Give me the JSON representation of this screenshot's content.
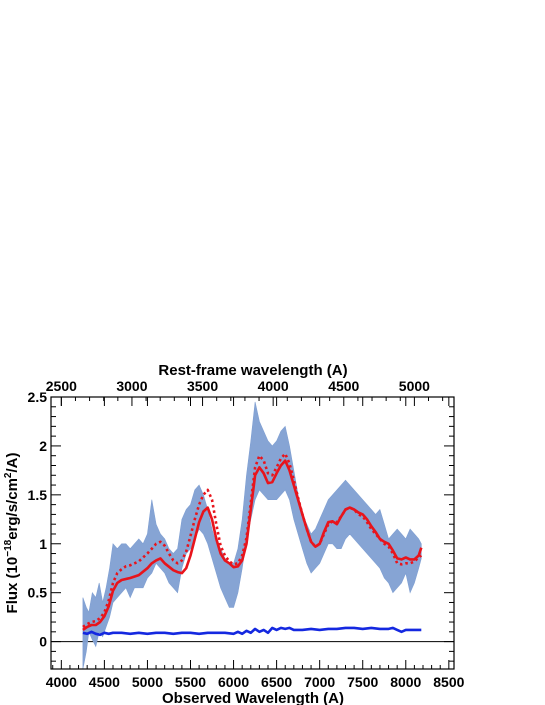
{
  "chart_data": {
    "type": "line",
    "title": "",
    "xlabel": "Observed Wavelength (A)",
    "x2label": "Rest-frame wavelength (A)",
    "ylabel_parts": {
      "prefix": "Flux (10",
      "exp1": "−18",
      "middle": "erg/s/cm",
      "exp2": "2",
      "suffix": "/A)"
    },
    "xlim": [
      3880,
      8560
    ],
    "ylim": [
      -0.28,
      2.5
    ],
    "x2_offset_rest_wavelength": 2500,
    "x2_offset_observed": 4000,
    "x2_slope": 1.64,
    "xticks": [
      4000,
      4500,
      5000,
      5500,
      6000,
      6500,
      7000,
      7500,
      8000,
      8500
    ],
    "xtick_labels": [
      "4000",
      "4500",
      "5000",
      "5500",
      "6000",
      "6500",
      "7000",
      "7500",
      "8000",
      "8500"
    ],
    "x2ticks": [
      2500,
      3000,
      3500,
      4000,
      4500,
      5000
    ],
    "x2tick_labels": [
      "2500",
      "3000",
      "3500",
      "4000",
      "4500",
      "5000"
    ],
    "yticks": [
      0,
      0.5,
      1,
      1.5,
      2,
      2.5
    ],
    "ytick_labels": [
      "0",
      "0.5",
      "1",
      "1.5",
      "2",
      "2.5"
    ],
    "zero_line": true,
    "grid": false,
    "series": [
      {
        "style": "band",
        "color": "#7f9fd2",
        "x": [
          4250,
          4290,
          4320,
          4360,
          4400,
          4440,
          4480,
          4520,
          4560,
          4600,
          4650,
          4700,
          4750,
          4800,
          4850,
          4900,
          4950,
          5000,
          5050,
          5100,
          5150,
          5200,
          5250,
          5300,
          5350,
          5400,
          5450,
          5500,
          5550,
          5600,
          5650,
          5700,
          5750,
          5800,
          5850,
          5900,
          5950,
          6000,
          6050,
          6100,
          6150,
          6200,
          6250,
          6300,
          6350,
          6400,
          6450,
          6500,
          6550,
          6600,
          6650,
          6700,
          6750,
          6800,
          6850,
          6900,
          6950,
          7000,
          7050,
          7100,
          7150,
          7200,
          7250,
          7300,
          7350,
          7400,
          7450,
          7500,
          7550,
          7600,
          7650,
          7700,
          7750,
          7800,
          7850,
          7900,
          7950,
          8000,
          8050,
          8100,
          8150,
          8180
        ],
        "low": [
          -0.28,
          -0.1,
          0.1,
          0.02,
          -0.05,
          0.1,
          0.05,
          0.15,
          0.25,
          0.4,
          0.45,
          0.5,
          0.55,
          0.45,
          0.55,
          0.55,
          0.55,
          0.65,
          0.7,
          0.8,
          0.75,
          0.7,
          0.6,
          0.55,
          0.5,
          0.75,
          0.9,
          0.95,
          1.05,
          1.15,
          1.1,
          1.0,
          0.85,
          0.7,
          0.55,
          0.45,
          0.35,
          0.35,
          0.5,
          0.75,
          1.05,
          1.25,
          1.45,
          1.55,
          1.5,
          1.45,
          1.45,
          1.45,
          1.5,
          1.55,
          1.45,
          1.25,
          1.1,
          0.95,
          0.8,
          0.7,
          0.75,
          0.8,
          0.9,
          1.0,
          1.0,
          0.95,
          0.95,
          1.05,
          1.1,
          1.05,
          1.0,
          0.95,
          0.9,
          0.85,
          0.8,
          0.75,
          0.65,
          0.6,
          0.5,
          0.55,
          0.6,
          0.7,
          0.5,
          0.6,
          0.75,
          0.85
        ],
        "high": [
          0.45,
          0.35,
          0.3,
          0.5,
          0.45,
          0.6,
          0.4,
          0.55,
          0.75,
          1.0,
          0.95,
          1.0,
          1.0,
          0.95,
          1.0,
          1.05,
          1.0,
          1.1,
          1.45,
          1.2,
          1.1,
          1.05,
          0.95,
          0.9,
          0.95,
          1.25,
          1.35,
          1.4,
          1.55,
          1.6,
          1.5,
          1.35,
          1.15,
          1.0,
          0.95,
          0.85,
          0.8,
          0.8,
          0.95,
          1.25,
          1.7,
          2.05,
          2.45,
          2.25,
          2.15,
          2.05,
          2.0,
          2.05,
          2.15,
          2.2,
          2.0,
          1.75,
          1.5,
          1.3,
          1.2,
          1.1,
          1.15,
          1.25,
          1.35,
          1.45,
          1.5,
          1.55,
          1.6,
          1.65,
          1.6,
          1.55,
          1.5,
          1.45,
          1.4,
          1.35,
          1.3,
          1.35,
          1.2,
          1.05,
          1.1,
          1.15,
          1.1,
          1.05,
          1.15,
          1.1,
          1.05,
          1.0
        ]
      },
      {
        "style": "solid",
        "color": "#e8141c",
        "x": [
          4250,
          4300,
          4350,
          4400,
          4450,
          4500,
          4550,
          4600,
          4650,
          4700,
          4800,
          4900,
          5000,
          5050,
          5100,
          5150,
          5200,
          5300,
          5350,
          5400,
          5450,
          5500,
          5550,
          5600,
          5650,
          5700,
          5750,
          5800,
          5850,
          5900,
          5950,
          6000,
          6050,
          6100,
          6150,
          6200,
          6250,
          6300,
          6350,
          6400,
          6450,
          6500,
          6550,
          6600,
          6650,
          6700,
          6750,
          6800,
          6850,
          6900,
          6950,
          7000,
          7050,
          7100,
          7150,
          7200,
          7250,
          7300,
          7350,
          7400,
          7450,
          7500,
          7550,
          7600,
          7650,
          7700,
          7750,
          7800,
          7850,
          7900,
          7950,
          8000,
          8050,
          8100,
          8150,
          8180
        ],
        "y": [
          0.12,
          0.15,
          0.17,
          0.17,
          0.2,
          0.26,
          0.36,
          0.52,
          0.6,
          0.63,
          0.65,
          0.68,
          0.75,
          0.8,
          0.83,
          0.85,
          0.8,
          0.73,
          0.71,
          0.7,
          0.75,
          0.88,
          1.05,
          1.22,
          1.33,
          1.37,
          1.25,
          1.05,
          0.9,
          0.83,
          0.8,
          0.76,
          0.77,
          0.83,
          1.0,
          1.35,
          1.7,
          1.78,
          1.72,
          1.62,
          1.63,
          1.72,
          1.8,
          1.85,
          1.75,
          1.6,
          1.45,
          1.3,
          1.15,
          1.02,
          0.97,
          1.0,
          1.12,
          1.22,
          1.23,
          1.2,
          1.28,
          1.35,
          1.37,
          1.35,
          1.32,
          1.3,
          1.25,
          1.18,
          1.12,
          1.05,
          1.02,
          1.0,
          0.93,
          0.85,
          0.84,
          0.86,
          0.84,
          0.84,
          0.88,
          0.96
        ]
      },
      {
        "style": "dotted",
        "color": "#e8141c",
        "x": [
          4250,
          4300,
          4350,
          4400,
          4450,
          4500,
          4550,
          4600,
          4650,
          4700,
          4750,
          4800,
          4900,
          5000,
          5050,
          5100,
          5150,
          5200,
          5250,
          5300,
          5350,
          5400,
          5450,
          5500,
          5550,
          5600,
          5650,
          5700,
          5750,
          5800,
          5850,
          5900,
          5950,
          6000,
          6050,
          6100,
          6150,
          6200,
          6250,
          6300,
          6350,
          6400,
          6450,
          6500,
          6550,
          6600,
          6650,
          6700,
          6750,
          6800,
          6850,
          6900,
          6950,
          7000,
          7050,
          7100,
          7150,
          7200,
          7250,
          7300,
          7350,
          7400,
          7450,
          7500,
          7550,
          7600,
          7650,
          7700,
          7750,
          7800,
          7850,
          7900,
          7950,
          8000,
          8050,
          8100,
          8150,
          8180
        ],
        "y": [
          0.15,
          0.18,
          0.2,
          0.21,
          0.24,
          0.3,
          0.42,
          0.6,
          0.7,
          0.74,
          0.77,
          0.78,
          0.82,
          0.9,
          0.95,
          1.0,
          1.02,
          0.98,
          0.9,
          0.83,
          0.8,
          0.83,
          0.92,
          1.08,
          1.25,
          1.4,
          1.5,
          1.55,
          1.45,
          1.2,
          0.98,
          0.88,
          0.82,
          0.79,
          0.8,
          0.88,
          1.06,
          1.42,
          1.78,
          1.9,
          1.85,
          1.72,
          1.7,
          1.78,
          1.87,
          1.92,
          1.82,
          1.65,
          1.47,
          1.3,
          1.15,
          1.02,
          0.97,
          1.0,
          1.1,
          1.2,
          1.23,
          1.22,
          1.28,
          1.35,
          1.37,
          1.35,
          1.3,
          1.28,
          1.22,
          1.15,
          1.1,
          1.05,
          1.0,
          0.97,
          0.9,
          0.8,
          0.79,
          0.8,
          0.8,
          0.82,
          0.86,
          0.88
        ]
      },
      {
        "style": "solid",
        "color": "#1428e0",
        "x": [
          4250,
          4300,
          4350,
          4400,
          4450,
          4500,
          4550,
          4600,
          4700,
          4800,
          4900,
          5000,
          5100,
          5200,
          5300,
          5400,
          5500,
          5600,
          5700,
          5800,
          5900,
          6000,
          6050,
          6100,
          6150,
          6200,
          6250,
          6300,
          6350,
          6400,
          6450,
          6500,
          6550,
          6600,
          6650,
          6700,
          6800,
          6900,
          7000,
          7100,
          7200,
          7300,
          7400,
          7500,
          7600,
          7700,
          7800,
          7850,
          7900,
          7950,
          8000,
          8100,
          8180
        ],
        "y": [
          0.09,
          0.08,
          0.1,
          0.08,
          0.07,
          0.09,
          0.08,
          0.09,
          0.09,
          0.08,
          0.09,
          0.08,
          0.09,
          0.09,
          0.08,
          0.09,
          0.09,
          0.08,
          0.09,
          0.09,
          0.09,
          0.08,
          0.1,
          0.08,
          0.11,
          0.09,
          0.13,
          0.1,
          0.12,
          0.09,
          0.14,
          0.12,
          0.14,
          0.13,
          0.14,
          0.12,
          0.12,
          0.13,
          0.12,
          0.13,
          0.13,
          0.14,
          0.14,
          0.13,
          0.14,
          0.13,
          0.13,
          0.14,
          0.12,
          0.1,
          0.12,
          0.12,
          0.12
        ]
      }
    ]
  }
}
